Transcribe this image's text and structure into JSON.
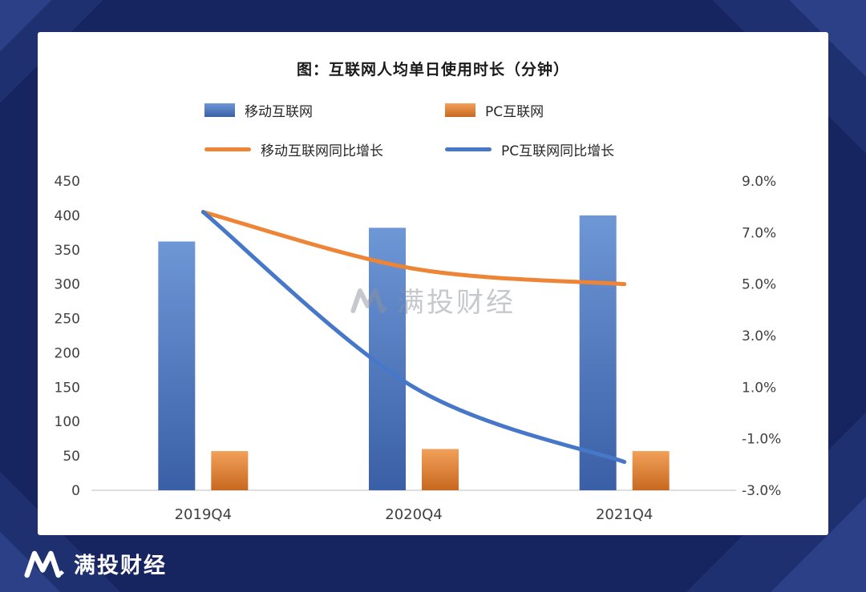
{
  "title": "图：互联网人均单日使用时长（分钟）",
  "legend": {
    "items": [
      {
        "key": "mobile-internet",
        "swatch": "bar",
        "color_top": "#6e97d6",
        "color_bottom": "#3a5fa6",
        "label": "移动互联网"
      },
      {
        "key": "pc-internet",
        "swatch": "bar",
        "color_top": "#f2a059",
        "color_bottom": "#c86820",
        "label": "PC互联网"
      },
      {
        "key": "mobile-internet-yoy",
        "swatch": "line",
        "color": "#ee8435",
        "label": "移动互联网同比增长"
      },
      {
        "key": "pc-internet-yoy",
        "swatch": "line",
        "color": "#4677c8",
        "label": "PC互联网同比增长"
      }
    ]
  },
  "watermark": {
    "text": "满投财经"
  },
  "footer": {
    "brand": "满投财经"
  },
  "colors": {
    "background": "#16245f",
    "card": "#ffffff",
    "axis_text": "#404040",
    "mobile_bar": "#4472c4",
    "pc_bar": "#ed7d31",
    "mobile_line": "#ee8435",
    "pc_line": "#4677c8"
  },
  "chart_data": {
    "type": "bar+line",
    "title": "图：互联网人均单日使用时长（分钟）",
    "categories": [
      "2019Q4",
      "2020Q4",
      "2021Q4"
    ],
    "bar_series": [
      {
        "key": "mobile-internet",
        "name": "移动互联网",
        "axis": "left",
        "unit": "分钟",
        "color_top": "#6e97d6",
        "color_bottom": "#3a5fa6",
        "values": [
          362,
          382,
          400
        ]
      },
      {
        "key": "pc-internet",
        "name": "PC互联网",
        "axis": "left",
        "unit": "分钟",
        "color_top": "#f2a059",
        "color_bottom": "#c86820",
        "values": [
          57,
          60,
          57
        ]
      }
    ],
    "line_series": [
      {
        "key": "mobile-internet-yoy",
        "name": "移动互联网同比增长",
        "axis": "right",
        "unit": "%",
        "color": "#ee8435",
        "values": [
          7.8,
          5.6,
          5.0
        ]
      },
      {
        "key": "pc-internet-yoy",
        "name": "PC互联网同比增长",
        "axis": "right",
        "unit": "%",
        "color": "#4677c8",
        "values": [
          7.8,
          1.0,
          -1.9
        ]
      }
    ],
    "left_axis": {
      "min": 0,
      "max": 450,
      "step": 50,
      "ticks": [
        450,
        400,
        350,
        300,
        250,
        200,
        150,
        100,
        50,
        0
      ]
    },
    "right_axis": {
      "min": -3,
      "max": 9,
      "step": 2,
      "ticks": [
        "9.0%",
        "7.0%",
        "5.0%",
        "3.0%",
        "1.0%",
        "-1.0%",
        "-3.0%"
      ]
    },
    "grid": false,
    "legend_position": "top",
    "smooth_lines": true
  }
}
